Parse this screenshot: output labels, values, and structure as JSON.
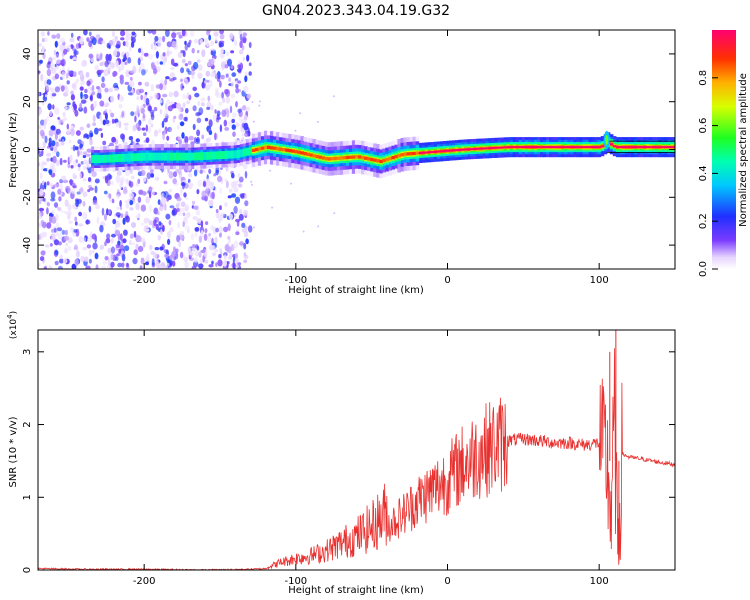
{
  "title": "GN04.2023.343.04.19.G32",
  "chart_data": [
    {
      "type": "heatmap",
      "xlabel": "Height of straight line (km)",
      "ylabel": "Frequency (Hz)",
      "xlim": [
        -270,
        150
      ],
      "ylim": [
        -50,
        50
      ],
      "xticks": [
        -200,
        -100,
        0,
        100
      ],
      "yticks": [
        -40,
        -20,
        0,
        20,
        40
      ],
      "grid": false,
      "description_regions": [
        {
          "x_range": [
            -270,
            -130
          ],
          "frequency_range": [
            -50,
            50
          ],
          "amplitude": "noise, ~0.1-0.3"
        },
        {
          "x_range": [
            -130,
            -20
          ],
          "frequency_range": [
            -8,
            3
          ],
          "amplitude": "signal, ~0.3-0.9"
        },
        {
          "x_range": [
            -20,
            150
          ],
          "frequency_range": [
            -2,
            2
          ],
          "amplitude": "strong signal, ~0.8-1.0"
        }
      ],
      "center_frequency_track": {
        "x": [
          -230,
          -200,
          -170,
          -140,
          -120,
          -100,
          -80,
          -60,
          -45,
          -30,
          -10,
          10,
          40,
          70,
          100,
          105,
          110,
          150
        ],
        "y": [
          -4,
          -3,
          -3,
          -2,
          1,
          -1,
          -4,
          -3,
          -5,
          -2,
          -1,
          0,
          1,
          1,
          1,
          3,
          1,
          1
        ]
      },
      "colorbar": {
        "label": "Normalized spectral amplitude",
        "range": [
          0.0,
          1.0
        ],
        "ticks": [
          "0.0",
          "0.2",
          "0.4",
          "0.6",
          "0.8"
        ]
      }
    },
    {
      "type": "line",
      "xlabel": "Height of straight line (km)",
      "ylabel": "SNR (10 * v/v)",
      "y_multiplier": "(x10^4)",
      "xlim": [
        -270,
        150
      ],
      "ylim": [
        0,
        3.3
      ],
      "xticks": [
        -200,
        -100,
        0,
        100
      ],
      "yticks": [
        0,
        1,
        2,
        3
      ],
      "grid": false,
      "series": [
        {
          "color": "#e8302e",
          "x": [
            -270,
            -240,
            -200,
            -160,
            -130,
            -120,
            -110,
            -100,
            -90,
            -80,
            -70,
            -60,
            -50,
            -40,
            -30,
            -20,
            -10,
            0,
            10,
            20,
            30,
            40,
            50,
            60,
            70,
            80,
            90,
            100,
            105,
            108,
            110,
            112,
            115,
            120,
            130,
            140,
            150
          ],
          "y": [
            0.02,
            0.01,
            0.01,
            0.0,
            0.01,
            0.02,
            0.08,
            0.12,
            0.15,
            0.2,
            0.28,
            0.35,
            0.45,
            0.6,
            0.75,
            0.95,
            1.1,
            1.25,
            1.45,
            1.6,
            1.7,
            1.78,
            1.8,
            1.78,
            1.75,
            1.75,
            1.72,
            1.75,
            1.5,
            0.8,
            2.2,
            0.2,
            1.6,
            1.55,
            1.52,
            1.48,
            1.45
          ]
        }
      ],
      "peaks": [
        {
          "x": 107,
          "y": 3.0
        },
        {
          "x": 111,
          "y": 3.3
        },
        {
          "x": 113,
          "y": 0.15
        }
      ]
    }
  ]
}
